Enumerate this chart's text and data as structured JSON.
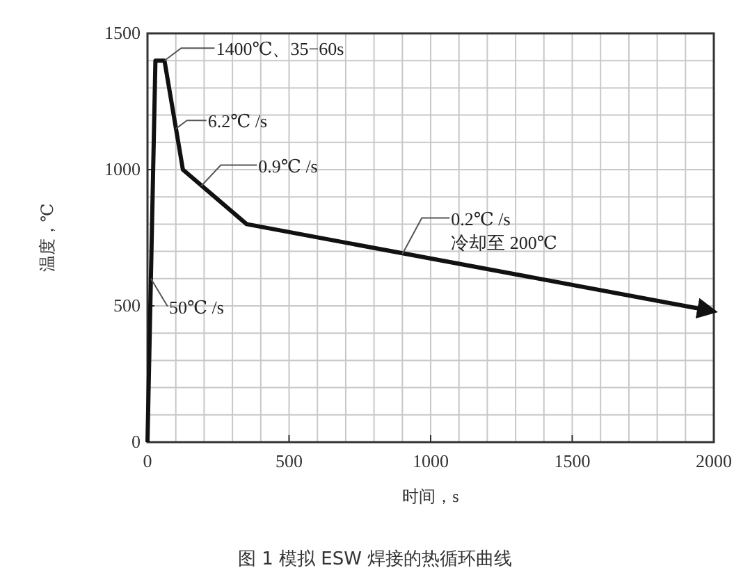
{
  "chart_data": {
    "type": "line",
    "title": "图 1  模拟 ESW 焊接的热循环曲线",
    "xlabel": "时间，s",
    "ylabel": "温度，℃",
    "x": [
      0,
      28,
      60,
      125,
      350,
      2000
    ],
    "series": [
      {
        "color": "#111111",
        "values": [
          0,
          1400,
          1400,
          1000,
          800,
          480
        ]
      }
    ],
    "xlim": [
      0,
      2000
    ],
    "ylim": [
      0,
      1500
    ],
    "xticks": [
      0,
      500,
      1000,
      1500,
      2000
    ],
    "yticks": [
      0,
      500,
      1000,
      1500
    ],
    "grid": true,
    "marker": "none",
    "line_style": "solid",
    "annotations": [
      {
        "text": "1400℃、35−60s",
        "x": 60,
        "y": 1400
      },
      {
        "text": "6.2℃ /s",
        "x": 100,
        "y": 1150
      },
      {
        "text": "0.9℃ /s",
        "x": 190,
        "y": 940
      },
      {
        "text": "0.2℃ /s\n冷却至 200℃",
        "x": 900,
        "y": 690
      },
      {
        "text": "50℃ /s",
        "x": 12,
        "y": 600
      }
    ]
  }
}
